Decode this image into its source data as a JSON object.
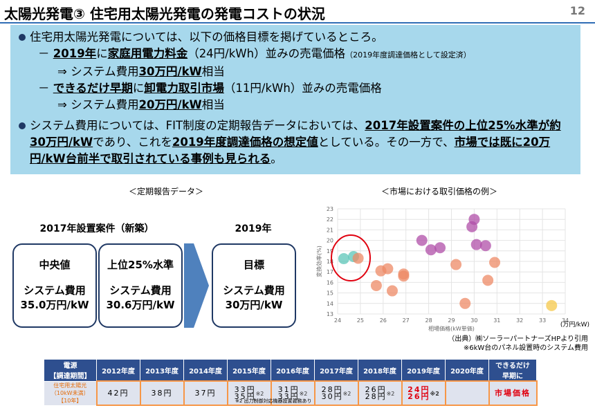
{
  "header": {
    "title": "太陽光発電③ 住宅用太陽光発電の発電コストの状況",
    "page": "12"
  },
  "summary": {
    "items": [
      {
        "level": 1,
        "segments": [
          {
            "text": "住宅用太陽光発電については、以下の価格目標を掲げているところ。"
          }
        ]
      },
      {
        "level": 2,
        "segments": [
          {
            "text": "－ "
          },
          {
            "text": "2019年",
            "em": true
          },
          {
            "text": "に"
          },
          {
            "text": "家庭用電力料金",
            "em": true
          },
          {
            "text": "（24円/kWh）並みの売電価格"
          },
          {
            "text": "（2019年度調達価格として設定済）",
            "small": true
          }
        ]
      },
      {
        "level": 3,
        "segments": [
          {
            "text": "⇒  システム費用"
          },
          {
            "text": "30万円/kW",
            "em": true
          },
          {
            "text": "相当"
          }
        ]
      },
      {
        "level": 2,
        "segments": [
          {
            "text": "－ "
          },
          {
            "text": "できるだけ早期",
            "em": true
          },
          {
            "text": "に"
          },
          {
            "text": "卸電力取引市場",
            "em": true
          },
          {
            "text": "（11円/kWh）並みの売電価格"
          }
        ]
      },
      {
        "level": 3,
        "segments": [
          {
            "text": "⇒  システム費用"
          },
          {
            "text": "20万円/kW",
            "em": true
          },
          {
            "text": "相当"
          }
        ]
      },
      {
        "level": 1,
        "segments": [
          {
            "text": "システム費用については、FIT制度の定期報告データにおいては、"
          },
          {
            "text": "2017年設置案件の上位25%水準が約30万円/kW",
            "em": true
          },
          {
            "text": "であり、これを"
          },
          {
            "text": "2019年度調達価格の想定値",
            "em": true
          },
          {
            "text": "としている。その一方で、"
          },
          {
            "text": "市場では既に20万円/kW台前半で取引されている事例も見られる",
            "em": true
          },
          {
            "text": "。"
          }
        ]
      }
    ]
  },
  "report": {
    "caption": "＜定期報告データ＞",
    "group_label": "2017年設置案件（新築）",
    "target_label": "2019年",
    "boxes": [
      {
        "title": "中央値",
        "lines": [
          "システム費用",
          "35.0万円/kW"
        ]
      },
      {
        "title": "上位25%水準",
        "lines": [
          "システム費用",
          "30.6万円/kW"
        ]
      }
    ],
    "target": {
      "title": "目標",
      "lines": [
        "システム費用",
        "30万円/kW"
      ]
    }
  },
  "market": {
    "caption": "＜市場における取引価格の例＞",
    "type": "scatter",
    "ylabel": "変換効率(%)",
    "xlabel": "相場価格(kW単価)",
    "xunit": "(万円/kW)",
    "xlim": [
      24,
      34
    ],
    "xticks": [
      24,
      25,
      26,
      27,
      28,
      29,
      30,
      31,
      32,
      33,
      34
    ],
    "ylim": [
      13,
      23
    ],
    "yticks": [
      13,
      14,
      15,
      16,
      17,
      18,
      19,
      20,
      21,
      22,
      23
    ],
    "grid": true,
    "series": [
      {
        "color": "#5cc6b8",
        "x": [
          24.27,
          24.7
        ],
        "y": [
          18.26,
          18.46
        ]
      },
      {
        "color": "#b04fa8",
        "x": [
          27.7,
          28.1,
          28.5,
          30.0,
          29.9,
          30.1,
          30.5
        ],
        "y": [
          20.0,
          19.1,
          19.3,
          22.0,
          21.3,
          19.6,
          19.5
        ]
      },
      {
        "color": "#ee8a66",
        "x": [
          24.9,
          25.9,
          26.2,
          26.9,
          26.9,
          25.7,
          26.4,
          29.2,
          30.9,
          30.6,
          29.6
        ],
        "y": [
          18.3,
          17.1,
          17.3,
          16.8,
          16.6,
          15.7,
          15.2,
          17.7,
          17.9,
          16.2,
          14.0
        ]
      },
      {
        "color": "#f5c84a",
        "x": [
          33.4
        ],
        "y": [
          13.8
        ]
      }
    ],
    "source": "（出典）㈱ソーラーパートナーズHPより引用",
    "note": "※6kW台のパネル設置時のシステム費用"
  },
  "table": {
    "header": [
      "電源\n【調達期間】",
      "2012年度",
      "2013年度",
      "2014年度",
      "2015年度",
      "2016年度",
      "2017年度",
      "2018年度",
      "2019年度",
      "2020年度",
      "できるだけ\n早期に"
    ],
    "row_label": "住宅用太陽光\n（10kW未満）\n【10年】",
    "cells": [
      {
        "lines": [
          "42円"
        ]
      },
      {
        "lines": [
          "38円"
        ]
      },
      {
        "lines": [
          "37円"
        ]
      },
      {
        "lines": [
          "33円",
          "35円"
        ],
        "note": "※2"
      },
      {
        "lines": [
          "31円",
          "33円"
        ],
        "note": "※2"
      },
      {
        "lines": [
          "28円",
          "30円"
        ],
        "note": "※2"
      },
      {
        "lines": [
          "26円",
          "28円"
        ],
        "note": "※2"
      },
      {
        "lines": [
          "24円",
          "26円"
        ],
        "note": "※2",
        "red": true
      },
      null,
      {
        "lines": [
          "市場価格"
        ],
        "red": true
      }
    ],
    "footnote": "※2 出力制御対応機器設置義務あり"
  }
}
